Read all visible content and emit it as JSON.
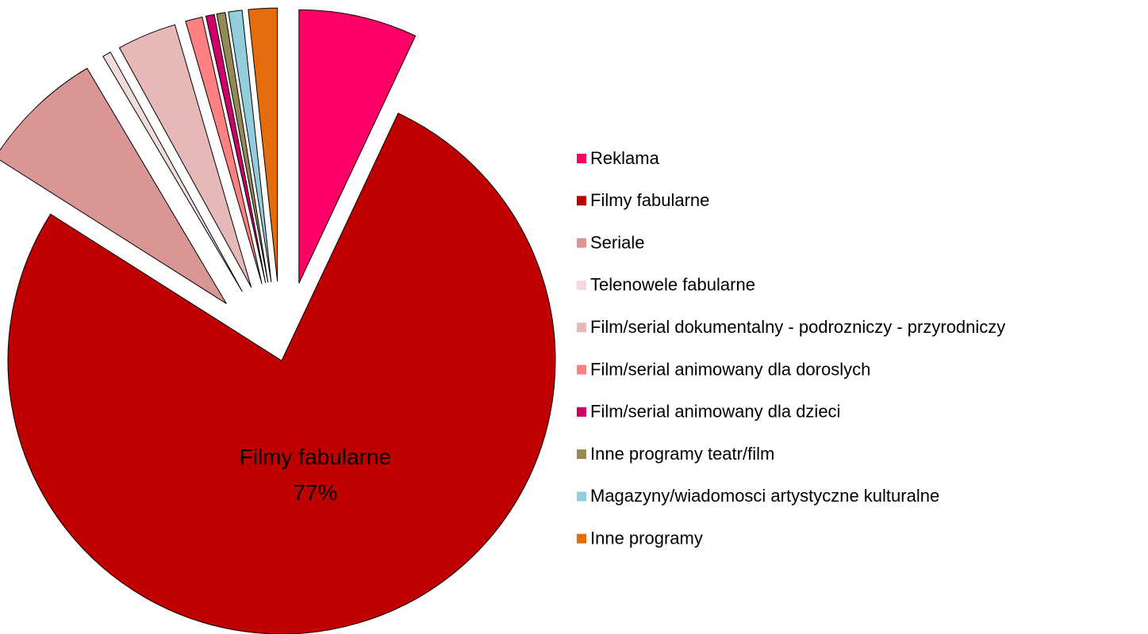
{
  "chart_data": {
    "type": "pie",
    "categories": [
      "Reklama",
      "Filmy fabularne",
      "Seriale",
      "Telenowele fabularne",
      "Film/serial dokumentalny - podrozniczy - przyrodniczy",
      "Film/serial animowany dla doroslych",
      "Film/serial animowany dla dzieci",
      "Inne programy teatr/film",
      "Magazyny/wiadomosci artystyczne kulturalne",
      "Inne programy"
    ],
    "values": [
      7,
      77,
      7.5,
      0.5,
      3.5,
      1,
      0.5,
      0.5,
      0.8,
      1.7
    ],
    "value_labels": [
      null,
      "77%",
      null,
      null,
      null,
      null,
      null,
      null,
      null,
      null
    ],
    "colors": [
      "#ff0066",
      "#c00000",
      "#d99694",
      "#f2dcdb",
      "#e6b9b8",
      "#ff8080",
      "#cc0066",
      "#948a54",
      "#92cddc",
      "#e46c0a"
    ],
    "exploded": [
      true,
      false,
      true,
      true,
      true,
      true,
      true,
      true,
      true,
      true
    ],
    "legend": "right"
  }
}
